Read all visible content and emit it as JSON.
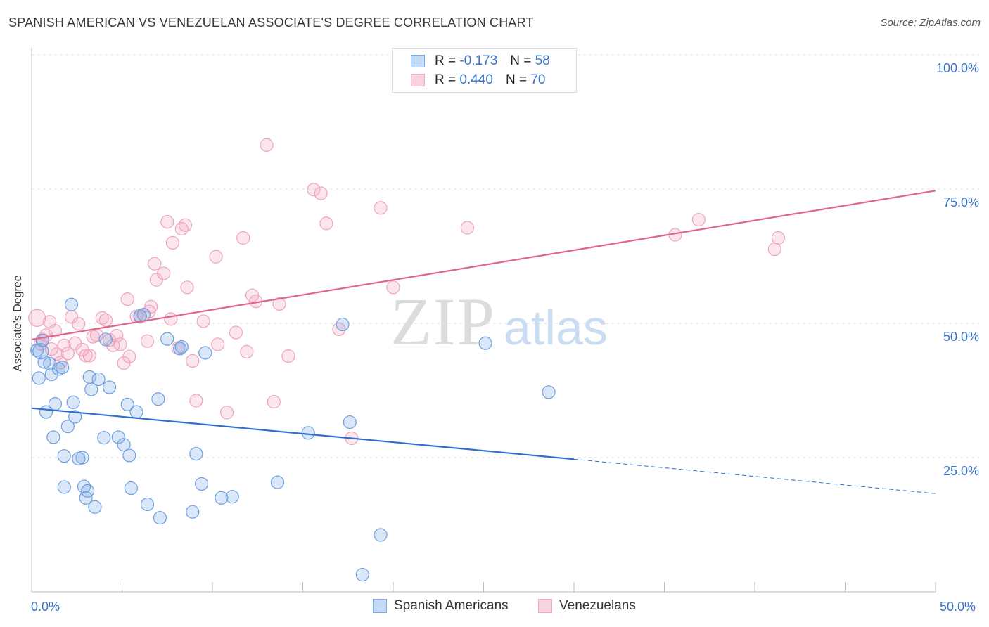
{
  "title": "SPANISH AMERICAN VS VENEZUELAN ASSOCIATE'S DEGREE CORRELATION CHART",
  "source": "Source: ZipAtlas.com",
  "colors": {
    "blue": "#7aaae6",
    "blue_line": "#2f6fd0",
    "pink": "#f3a7c1",
    "pink_line": "#e0668f",
    "tick_text": "#3a73c8"
  },
  "legend_top": {
    "rows": [
      {
        "r_label": "R =",
        "r_value": "-0.173",
        "n_label": "N =",
        "n_value": "58"
      },
      {
        "r_label": "R =",
        "r_value": "0.440",
        "n_label": "N =",
        "n_value": "70"
      }
    ]
  },
  "watermark": {
    "zip": "ZIP",
    "atlas": "atlas"
  },
  "chart_data": {
    "type": "scatter",
    "title": "SPANISH AMERICAN VS VENEZUELAN ASSOCIATE'S DEGREE CORRELATION CHART",
    "xlabel": "",
    "ylabel": "Associate's Degree",
    "xlim": [
      0,
      50
    ],
    "ylim": [
      0,
      100
    ],
    "x_tick_labels": [
      "0.0%",
      "50.0%"
    ],
    "y_tick_labels": [
      "100.0%",
      "75.0%",
      "50.0%",
      "25.0%"
    ],
    "y_ticks": [
      100,
      75,
      50,
      25
    ],
    "grid": true,
    "legend_position": "bottom",
    "series": [
      {
        "name": "Spanish Americans",
        "color": "#7aaae6",
        "trend": {
          "x": [
            0,
            30
          ],
          "y": [
            34.2,
            24.7
          ],
          "dashed_to": [
            50,
            18.3
          ]
        },
        "points": [
          [
            0.3,
            45
          ],
          [
            0.4,
            39.8
          ],
          [
            0.6,
            46.8
          ],
          [
            0.7,
            42.8
          ],
          [
            0.8,
            33.5
          ],
          [
            1.0,
            42.5
          ],
          [
            1.1,
            40.5
          ],
          [
            1.2,
            28.8
          ],
          [
            1.3,
            35.0
          ],
          [
            1.5,
            41.5
          ],
          [
            1.7,
            41.8
          ],
          [
            1.8,
            25.3
          ],
          [
            1.8,
            19.5
          ],
          [
            2.0,
            30.8
          ],
          [
            2.2,
            53.5
          ],
          [
            2.3,
            35.3
          ],
          [
            2.4,
            32.6
          ],
          [
            2.6,
            24.8
          ],
          [
            2.8,
            25.0
          ],
          [
            2.9,
            19.6
          ],
          [
            3.0,
            17.5
          ],
          [
            3.1,
            18.8
          ],
          [
            3.2,
            40.0
          ],
          [
            3.3,
            37.7
          ],
          [
            3.5,
            15.8
          ],
          [
            3.7,
            39.6
          ],
          [
            4.0,
            28.7
          ],
          [
            4.1,
            47.0
          ],
          [
            4.3,
            38.1
          ],
          [
            4.8,
            28.8
          ],
          [
            5.1,
            27.4
          ],
          [
            5.3,
            34.9
          ],
          [
            5.4,
            25.4
          ],
          [
            5.5,
            19.3
          ],
          [
            5.8,
            33.5
          ],
          [
            6.0,
            51.4
          ],
          [
            6.2,
            51.6
          ],
          [
            6.4,
            16.3
          ],
          [
            7.0,
            35.9
          ],
          [
            7.1,
            13.8
          ],
          [
            7.5,
            47.1
          ],
          [
            8.2,
            45.3
          ],
          [
            8.3,
            45.6
          ],
          [
            8.9,
            14.9
          ],
          [
            9.1,
            25.7
          ],
          [
            9.4,
            20.1
          ],
          [
            9.6,
            44.5
          ],
          [
            10.5,
            17.5
          ],
          [
            11.1,
            17.7
          ],
          [
            13.6,
            20.4
          ],
          [
            15.3,
            29.6
          ],
          [
            17.2,
            49.8
          ],
          [
            17.6,
            31.6
          ],
          [
            18.3,
            3.2
          ],
          [
            19.3,
            10.6
          ],
          [
            25.1,
            46.3
          ],
          [
            28.6,
            37.2
          ],
          [
            0.5,
            44.8
          ]
        ]
      },
      {
        "name": "Venezuelans",
        "color": "#f3a7c1",
        "trend": {
          "x": [
            0,
            50
          ],
          "y": [
            47.0,
            74.7
          ]
        },
        "points": [
          [
            0.3,
            51.0
          ],
          [
            0.5,
            46.2
          ],
          [
            0.6,
            47.0
          ],
          [
            0.8,
            47.8
          ],
          [
            1.0,
            50.3
          ],
          [
            1.1,
            45.2
          ],
          [
            1.3,
            48.6
          ],
          [
            1.4,
            44.3
          ],
          [
            1.6,
            42.7
          ],
          [
            1.8,
            45.9
          ],
          [
            2.0,
            44.4
          ],
          [
            2.2,
            51.2
          ],
          [
            2.4,
            46.3
          ],
          [
            2.6,
            49.9
          ],
          [
            2.8,
            45.1
          ],
          [
            3.0,
            44.0
          ],
          [
            3.2,
            44.0
          ],
          [
            3.4,
            47.5
          ],
          [
            3.6,
            47.8
          ],
          [
            3.9,
            51.0
          ],
          [
            4.1,
            50.6
          ],
          [
            4.3,
            46.9
          ],
          [
            4.5,
            45.9
          ],
          [
            4.7,
            47.7
          ],
          [
            4.9,
            46.1
          ],
          [
            5.1,
            42.6
          ],
          [
            5.3,
            54.5
          ],
          [
            5.4,
            43.8
          ],
          [
            5.8,
            51.3
          ],
          [
            6.0,
            51.2
          ],
          [
            6.4,
            46.7
          ],
          [
            6.5,
            52.2
          ],
          [
            6.6,
            53.1
          ],
          [
            6.8,
            61.1
          ],
          [
            6.9,
            58.1
          ],
          [
            7.3,
            59.3
          ],
          [
            7.5,
            68.9
          ],
          [
            7.7,
            50.8
          ],
          [
            7.8,
            65.0
          ],
          [
            8.1,
            45.4
          ],
          [
            8.3,
            67.6
          ],
          [
            8.5,
            68.3
          ],
          [
            8.6,
            56.7
          ],
          [
            8.9,
            43.0
          ],
          [
            9.1,
            35.6
          ],
          [
            9.5,
            50.4
          ],
          [
            10.2,
            62.4
          ],
          [
            10.3,
            46.1
          ],
          [
            10.8,
            33.4
          ],
          [
            11.3,
            48.3
          ],
          [
            11.7,
            65.9
          ],
          [
            11.9,
            44.7
          ],
          [
            12.2,
            55.2
          ],
          [
            12.4,
            54.1
          ],
          [
            13.0,
            83.2
          ],
          [
            13.4,
            35.4
          ],
          [
            13.7,
            53.6
          ],
          [
            14.2,
            43.9
          ],
          [
            15.6,
            74.9
          ],
          [
            16.0,
            74.2
          ],
          [
            16.3,
            68.6
          ],
          [
            17.0,
            48.9
          ],
          [
            17.7,
            28.6
          ],
          [
            19.3,
            71.5
          ],
          [
            20.0,
            56.7
          ],
          [
            24.1,
            67.8
          ],
          [
            35.6,
            66.5
          ],
          [
            36.9,
            69.3
          ],
          [
            41.1,
            63.8
          ],
          [
            41.3,
            65.9
          ]
        ]
      }
    ]
  },
  "bottom_legend": [
    {
      "label": "Spanish Americans"
    },
    {
      "label": "Venezuelans"
    }
  ]
}
